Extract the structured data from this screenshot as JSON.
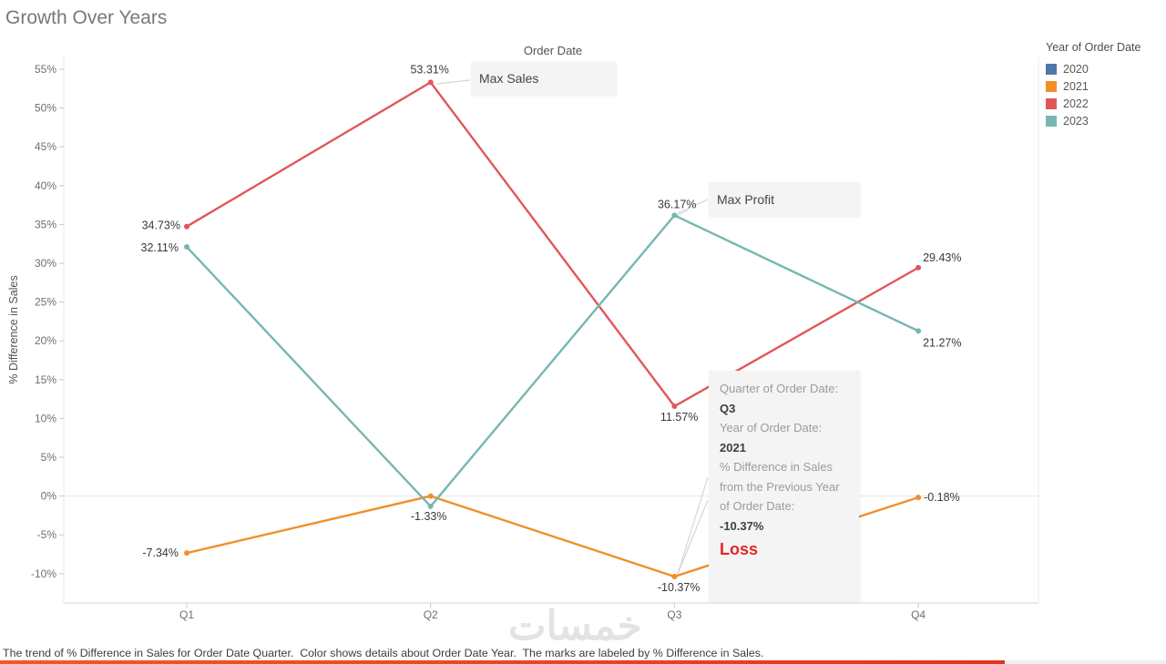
{
  "title": "Growth Over Years",
  "column_header": "Order Date",
  "caption": "The trend of % Difference in Sales for Order Date Quarter.  Color shows details about Order Date Year.  The marks are labeled by % Difference in Sales.",
  "watermark": "خمسات",
  "legend": {
    "title": "Year of Order Date"
  },
  "annotations": {
    "max_sales": "Max Sales",
    "max_profit": "Max Profit",
    "loss": "Loss"
  },
  "tooltip": {
    "rows": [
      {
        "label": "Quarter of Order Date: ",
        "value": "Q3"
      },
      {
        "label": "Year of Order Date: ",
        "value": "2021"
      },
      {
        "label": "% Difference in Sales from the Previous Year of Order Date: ",
        "value": "-10.37%"
      }
    ]
  },
  "chart_data": {
    "type": "line",
    "title": "Growth Over Years",
    "xlabel": "Order Date",
    "ylabel": "% Difference in Sales",
    "categories": [
      "Q1",
      "Q2",
      "Q3",
      "Q4"
    ],
    "ylim": [
      -10,
      55
    ],
    "ytick_values": [
      -10,
      -5,
      0,
      5,
      10,
      15,
      20,
      25,
      30,
      35,
      40,
      45,
      50,
      55
    ],
    "grid": "zero-line-only",
    "legend_title": "Year of Order Date",
    "legend_position": "top-right",
    "series": [
      {
        "name": "2020",
        "color": "#4e79a7",
        "values": [],
        "labels": []
      },
      {
        "name": "2021",
        "color": "#f28e2b",
        "values": [
          -7.34,
          0,
          -10.37,
          -0.18
        ],
        "labels": [
          "-7.34%",
          "",
          "-10.37%",
          "-0.18%"
        ]
      },
      {
        "name": "2022",
        "color": "#e15759",
        "values": [
          34.73,
          53.31,
          11.57,
          29.43
        ],
        "labels": [
          "34.73%",
          "53.31%",
          "11.57%",
          "29.43%"
        ]
      },
      {
        "name": "2023",
        "color": "#76b7b2",
        "values": [
          32.11,
          -1.33,
          36.17,
          21.27
        ],
        "labels": [
          "32.11%",
          "-1.33%",
          "36.17%",
          "21.27%"
        ]
      }
    ]
  }
}
